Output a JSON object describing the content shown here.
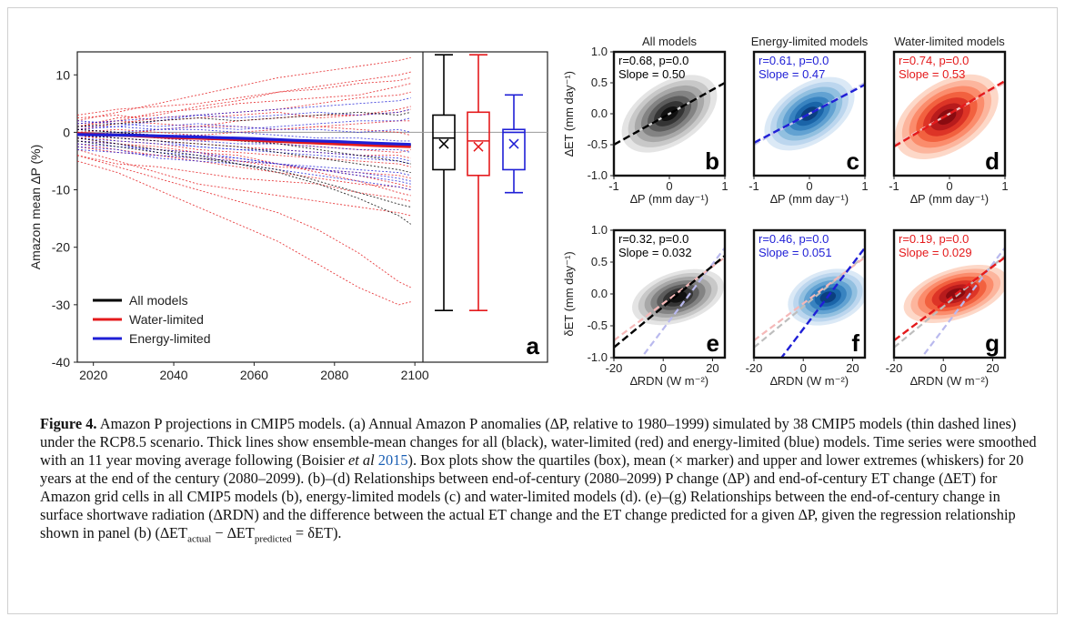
{
  "figure": {
    "label": "Figure 4.",
    "caption_parts": [
      "Amazon P projections in CMIP5 models. (a) Annual Amazon P anomalies (∆P, relative to 1980–1999) simulated by 38 CMIP5 models (thin dashed lines) under the RCP8.5 scenario. Thick lines show ensemble-mean changes for all (black), water-limited (red) and energy-limited (blue) models. Time series were smoothed with an 11 year moving average following (Boisier ",
      "et al",
      " ",
      "2015",
      "). Box plots show the quartiles (box), mean (× marker) and upper and lower extremes (whiskers) for 20 years at the end of the century (2080–2099). (b)–(d) Relationships between end-of-century (2080–2099) P change (∆P) and end-of-century ET change (∆ET) for Amazon grid cells in all CMIP5 models (b), energy-limited models (c) and water-limited models (d). (e)–(g) Relationships between the end-of-century change in surface shortwave radiation (∆RDN) and the difference between the actual ET change and the ET change predicted for a given ∆P, given the regression relationship shown in panel (b) (∆ET",
      "actual",
      " − ∆ET",
      "predicted",
      " = δET)."
    ]
  },
  "chart_data": [
    {
      "panel": "a",
      "type": "line",
      "ylabel": "Amazon mean ∆P (%)",
      "x_ticks": [
        2020,
        2040,
        2060,
        2080,
        2100
      ],
      "y_ticks": [
        10,
        0,
        -10,
        -20,
        -30,
        -40
      ],
      "xlim": [
        2016,
        2102
      ],
      "ylim": [
        -40,
        14
      ],
      "legend": {
        "placement": "bottom-left",
        "entries": [
          {
            "name": "All models",
            "color": "#000000"
          },
          {
            "name": "Water-limited",
            "color": "#e41a1c"
          },
          {
            "name": "Energy-limited",
            "color": "#1f1fd6"
          }
        ]
      },
      "series": [
        {
          "name": "All models",
          "color": "#000000",
          "x": [
            2016,
            2030,
            2040,
            2050,
            2060,
            2070,
            2080,
            2090,
            2099
          ],
          "y": [
            -0.3,
            -0.5,
            -0.8,
            -1.0,
            -1.2,
            -1.5,
            -1.8,
            -2.1,
            -2.3
          ]
        },
        {
          "name": "Water-limited",
          "color": "#e41a1c",
          "x": [
            2016,
            2030,
            2040,
            2050,
            2060,
            2070,
            2080,
            2090,
            2099
          ],
          "y": [
            -0.2,
            -0.6,
            -0.9,
            -1.1,
            -1.4,
            -1.7,
            -2.0,
            -2.3,
            -2.5
          ]
        },
        {
          "name": "Energy-limited",
          "color": "#1f1fd6",
          "x": [
            2016,
            2030,
            2040,
            2050,
            2060,
            2070,
            2080,
            2090,
            2099
          ],
          "y": [
            -0.4,
            -0.5,
            -0.7,
            -0.9,
            -1.1,
            -1.4,
            -1.6,
            -1.9,
            -2.1
          ]
        }
      ],
      "model_x": [
        2016,
        2026,
        2036,
        2046,
        2056,
        2066,
        2076,
        2086,
        2096,
        2099
      ],
      "models": [
        {
          "group": "water",
          "y": [
            2.0,
            3.5,
            5.0,
            6.5,
            8.0,
            9.5,
            10.5,
            11.5,
            12.5,
            13.0
          ]
        },
        {
          "group": "water",
          "y": [
            1.0,
            2.5,
            3.0,
            4.5,
            5.5,
            7.0,
            7.5,
            8.5,
            9.0,
            9.5
          ]
        },
        {
          "group": "water",
          "y": [
            3.0,
            4.0,
            4.5,
            5.0,
            6.0,
            7.0,
            8.0,
            9.0,
            10.0,
            10.5
          ]
        },
        {
          "group": "water",
          "y": [
            0.5,
            1.5,
            2.5,
            3.0,
            3.5,
            4.0,
            5.0,
            6.0,
            6.5,
            7.0
          ]
        },
        {
          "group": "water",
          "y": [
            -1.0,
            -0.5,
            0.5,
            1.0,
            2.0,
            2.5,
            3.0,
            3.0,
            3.5,
            4.0
          ]
        },
        {
          "group": "water",
          "y": [
            1.5,
            2.0,
            1.5,
            1.0,
            1.0,
            0.5,
            1.0,
            1.5,
            2.0,
            2.0
          ]
        },
        {
          "group": "water",
          "y": [
            -0.5,
            -1.5,
            -2.0,
            -3.0,
            -3.5,
            -4.0,
            -4.5,
            -5.0,
            -5.5,
            -6.0
          ]
        },
        {
          "group": "water",
          "y": [
            -2.0,
            -3.0,
            -4.0,
            -5.0,
            -6.0,
            -7.0,
            -8.0,
            -9.0,
            -9.5,
            -10.0
          ]
        },
        {
          "group": "water",
          "y": [
            -4.0,
            -5.5,
            -6.0,
            -7.0,
            -8.0,
            -8.5,
            -9.0,
            -10.5,
            -11.5,
            -12.0
          ]
        },
        {
          "group": "water",
          "y": [
            -3.0,
            -5.0,
            -7.0,
            -9.0,
            -10.0,
            -11.0,
            -12.0,
            -13.0,
            -14.0,
            -14.5
          ]
        },
        {
          "group": "water",
          "y": [
            -4.0,
            -6.0,
            -8.0,
            -10.0,
            -12.0,
            -14.0,
            -17.0,
            -21.0,
            -26.0,
            -27.0
          ]
        },
        {
          "group": "water",
          "y": [
            -5.0,
            -7.0,
            -10.0,
            -13.0,
            -16.0,
            -19.0,
            -23.0,
            -27.0,
            -30.0,
            -29.5
          ]
        },
        {
          "group": "water",
          "y": [
            0.0,
            -1.0,
            -1.5,
            -2.0,
            -2.5,
            -3.0,
            -3.5,
            -4.0,
            -4.0,
            -4.5
          ]
        },
        {
          "group": "water",
          "y": [
            2.5,
            3.0,
            2.0,
            2.5,
            3.0,
            3.5,
            2.5,
            3.0,
            4.0,
            4.5
          ]
        },
        {
          "group": "water",
          "y": [
            -1.5,
            -2.0,
            -3.0,
            -3.5,
            -5.0,
            -6.0,
            -6.5,
            -7.0,
            -7.5,
            -8.0
          ]
        },
        {
          "group": "water",
          "y": [
            0.5,
            0.0,
            -1.0,
            -1.5,
            -1.0,
            -2.0,
            -2.5,
            -3.0,
            -3.5,
            -3.0
          ]
        },
        {
          "group": "water",
          "y": [
            1.0,
            2.0,
            3.5,
            4.0,
            5.0,
            5.5,
            6.0,
            6.5,
            8.0,
            8.5
          ]
        },
        {
          "group": "water",
          "y": [
            -2.5,
            -3.5,
            -4.0,
            -4.5,
            -5.0,
            -5.5,
            -6.5,
            -7.5,
            -9.0,
            -9.5
          ]
        },
        {
          "group": "water",
          "y": [
            0.0,
            0.5,
            0.0,
            -0.5,
            0.0,
            0.5,
            1.0,
            0.5,
            0.0,
            -0.5
          ]
        },
        {
          "group": "water",
          "y": [
            -1.0,
            -2.0,
            -2.5,
            -3.5,
            -4.0,
            -5.5,
            -7.0,
            -8.5,
            -10.5,
            -11.0
          ]
        },
        {
          "group": "energy",
          "y": [
            0.5,
            1.0,
            2.0,
            3.0,
            3.5,
            4.0,
            4.5,
            5.0,
            5.5,
            6.0
          ]
        },
        {
          "group": "energy",
          "y": [
            -0.5,
            0.0,
            0.5,
            1.0,
            0.5,
            1.0,
            1.5,
            2.0,
            2.0,
            2.5
          ]
        },
        {
          "group": "energy",
          "y": [
            -1.0,
            -1.5,
            -2.0,
            -2.5,
            -3.0,
            -3.5,
            -4.0,
            -4.5,
            -5.0,
            -5.5
          ]
        },
        {
          "group": "energy",
          "y": [
            -2.0,
            -2.5,
            -3.0,
            -3.5,
            -4.5,
            -5.5,
            -6.5,
            -7.5,
            -8.5,
            -9.0
          ]
        },
        {
          "group": "energy",
          "y": [
            1.0,
            1.0,
            0.5,
            0.5,
            0.0,
            -0.5,
            -1.0,
            -1.0,
            -1.5,
            -1.5
          ]
        },
        {
          "group": "energy",
          "y": [
            0.0,
            -0.5,
            -1.0,
            -1.5,
            -2.0,
            -2.0,
            -2.5,
            -3.0,
            -3.0,
            -3.5
          ]
        },
        {
          "group": "energy",
          "y": [
            -3.0,
            -3.5,
            -4.0,
            -4.5,
            -5.0,
            -5.5,
            -6.0,
            -6.5,
            -7.0,
            -7.5
          ]
        },
        {
          "group": "energy",
          "y": [
            1.5,
            2.0,
            2.5,
            3.0,
            2.5,
            3.0,
            3.5,
            3.0,
            3.5,
            4.0
          ]
        },
        {
          "group": "energy",
          "y": [
            -1.5,
            -2.0,
            -3.5,
            -4.0,
            -4.5,
            -5.5,
            -6.5,
            -7.0,
            -8.0,
            -8.5
          ]
        },
        {
          "group": "energy",
          "y": [
            0.5,
            0.0,
            -0.5,
            -0.5,
            -1.0,
            -1.5,
            -1.5,
            -2.0,
            -2.5,
            -2.5
          ]
        },
        {
          "group": "energy",
          "y": [
            -0.5,
            -1.0,
            -1.5,
            -2.5,
            -3.0,
            -3.0,
            -3.5,
            -4.0,
            -4.5,
            -5.0
          ]
        },
        {
          "group": "energy",
          "y": [
            2.0,
            1.5,
            1.0,
            1.5,
            1.0,
            0.5,
            0.5,
            0.0,
            0.5,
            0.0
          ]
        },
        {
          "group": "energy",
          "y": [
            -2.5,
            -3.0,
            -4.5,
            -5.0,
            -5.5,
            -6.5,
            -7.5,
            -8.5,
            -9.5,
            -10.0
          ]
        },
        {
          "group": "all",
          "y": [
            -1.0,
            -2.0,
            -3.0,
            -4.0,
            -5.5,
            -7.0,
            -9.0,
            -11.5,
            -14.5,
            -16.0
          ]
        },
        {
          "group": "all",
          "y": [
            -1.5,
            -2.5,
            -3.5,
            -4.5,
            -5.5,
            -6.5,
            -8.5,
            -10.5,
            -12.5,
            -13.0
          ]
        },
        {
          "group": "all",
          "y": [
            0.5,
            0.0,
            -0.5,
            -1.0,
            -1.5,
            -2.0,
            -3.0,
            -4.0,
            -5.0,
            -5.5
          ]
        },
        {
          "group": "all",
          "y": [
            1.0,
            1.5,
            2.0,
            2.5,
            2.0,
            2.5,
            3.0,
            3.5,
            3.0,
            3.5
          ]
        },
        {
          "group": "all",
          "y": [
            -0.5,
            -1.0,
            -1.5,
            -2.0,
            -2.5,
            -3.5,
            -4.5,
            -5.5,
            -6.5,
            -7.0
          ]
        }
      ],
      "boxplots": [
        {
          "group": "All models",
          "color": "#000000",
          "whisker_low": -31.0,
          "q1": -6.5,
          "median": -1.0,
          "q3": 3.0,
          "whisker_high": 13.5,
          "mean": -2.0
        },
        {
          "group": "Water-limited",
          "color": "#e41a1c",
          "whisker_low": -31.0,
          "q1": -7.5,
          "median": -1.5,
          "q3": 3.5,
          "whisker_high": 13.5,
          "mean": -2.5
        },
        {
          "group": "Energy-limited",
          "color": "#1f1fd6",
          "whisker_low": -10.5,
          "q1": -6.5,
          "median": 0.0,
          "q3": 0.5,
          "whisker_high": 6.5,
          "mean": -2.0
        }
      ]
    },
    {
      "type": "heatmap",
      "rows": [
        {
          "ylabel": "∆ET (mm day⁻¹)",
          "xlabel": "∆P (mm day⁻¹)",
          "xlim": [
            -1,
            1
          ],
          "ylim": [
            -1.0,
            1.0
          ],
          "x_ticks": [
            -1,
            0,
            1
          ],
          "y_ticks": [
            "1.0",
            "0.5",
            "0.0",
            "-0.5",
            "-1.0"
          ],
          "panels": [
            {
              "letter": "b",
              "column_title": "All models",
              "stats": "r=0.68, p=0.0",
              "slope_text": "Slope = 0.50",
              "color": "#000000",
              "palette": "gray",
              "slope": 0.5,
              "intercept": 0.0,
              "center": [
                0.0,
                0.0
              ],
              "spread": [
                0.35,
                0.18
              ]
            },
            {
              "letter": "c",
              "column_title": "Energy-limited models",
              "stats": "r=0.61, p=0.0",
              "slope_text": "Slope = 0.47",
              "color": "#1f1fd6",
              "palette": "blue",
              "slope": 0.47,
              "intercept": 0.0,
              "center": [
                0.0,
                0.0
              ],
              "spread": [
                0.33,
                0.17
              ]
            },
            {
              "letter": "d",
              "column_title": "Water-limited models",
              "stats": "r=0.74, p=0.0",
              "slope_text": "Slope = 0.53",
              "color": "#e41a1c",
              "palette": "red",
              "slope": 0.53,
              "intercept": 0.0,
              "center": [
                -0.05,
                -0.05
              ],
              "spread": [
                0.38,
                0.2
              ]
            }
          ]
        },
        {
          "ylabel": "δET (mm day⁻¹)",
          "xlabel": "∆RDN (W m⁻²)",
          "xlim": [
            -20,
            25
          ],
          "ylim": [
            -1.0,
            1.0
          ],
          "x_ticks": [
            -20,
            0,
            20
          ],
          "y_ticks": [
            "1.0",
            "0.5",
            "0.0",
            "-0.5",
            "-1.0"
          ],
          "panels": [
            {
              "letter": "e",
              "stats": "r=0.32, p=0.0",
              "slope_text": "Slope = 0.032",
              "color": "#000000",
              "palette": "gray",
              "slope": 0.032,
              "intercept": -0.2,
              "center": [
                6.0,
                -0.05
              ],
              "spread": [
                7.0,
                0.14
              ]
            },
            {
              "letter": "f",
              "stats": "r=0.46, p=0.0",
              "slope_text": "Slope = 0.051",
              "color": "#1f1fd6",
              "palette": "blue",
              "slope": 0.051,
              "intercept": -0.55,
              "center": [
                10.0,
                -0.05
              ],
              "spread": [
                6.0,
                0.15
              ]
            },
            {
              "letter": "g",
              "stats": "r=0.19, p=0.0",
              "slope_text": "Slope = 0.029",
              "color": "#e41a1c",
              "palette": "red",
              "slope": 0.029,
              "intercept": -0.15,
              "center": [
                5.0,
                0.0
              ],
              "spread": [
                8.0,
                0.14
              ]
            }
          ]
        }
      ]
    }
  ]
}
